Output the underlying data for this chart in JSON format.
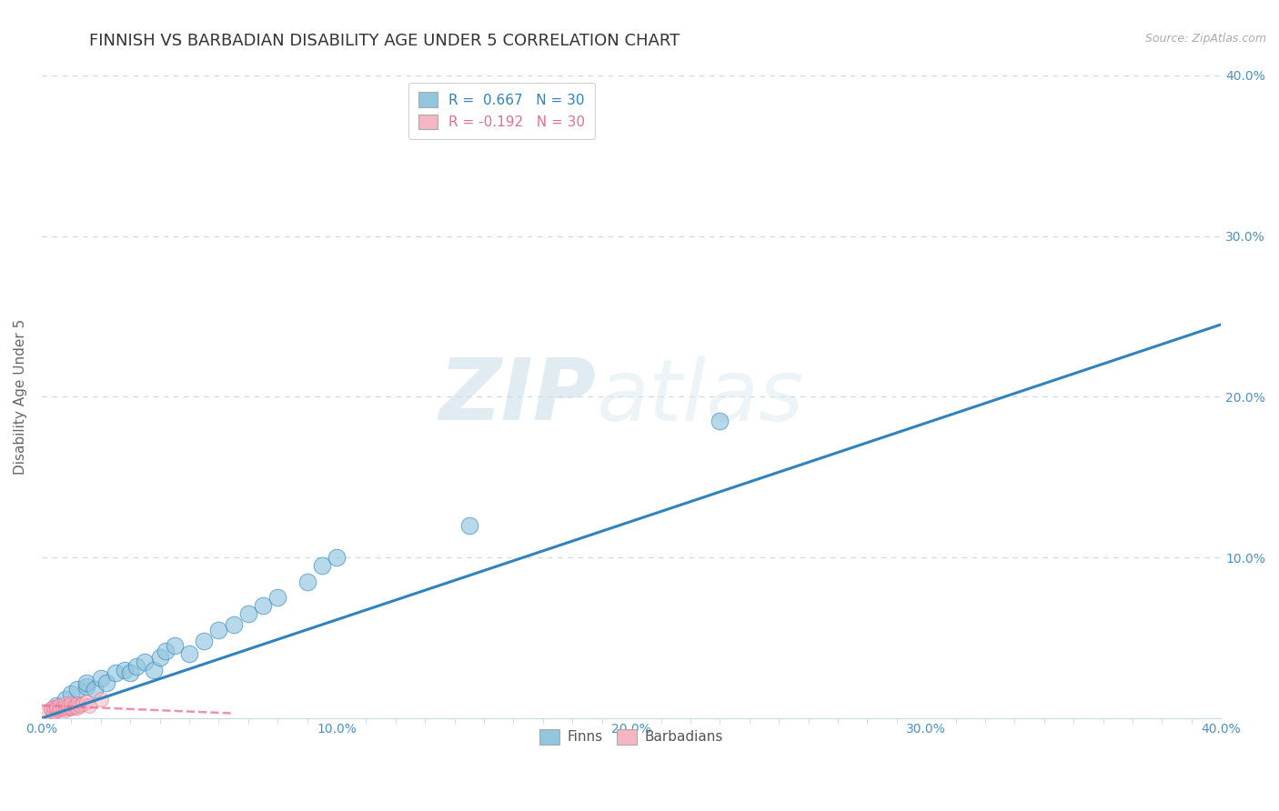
{
  "title": "FINNISH VS BARBADIAN DISABILITY AGE UNDER 5 CORRELATION CHART",
  "source": "Source: ZipAtlas.com",
  "ylabel": "Disability Age Under 5",
  "xlim": [
    0.0,
    0.4
  ],
  "ylim": [
    0.0,
    0.4
  ],
  "xtick_major_positions": [
    0.0,
    0.1,
    0.2,
    0.3,
    0.4
  ],
  "ytick_major_positions": [
    0.1,
    0.2,
    0.3,
    0.4
  ],
  "legend_r_finn": " 0.667",
  "legend_n_finn": "30",
  "legend_r_barb": "-0.192",
  "legend_n_barb": "30",
  "color_finn": "#92c5de",
  "color_barb": "#f4b6c2",
  "color_finn_line": "#3182bd",
  "color_barb_line": "#e07090",
  "watermark_zip": "ZIP",
  "watermark_atlas": "atlas",
  "finns_x": [
    0.005,
    0.008,
    0.01,
    0.012,
    0.015,
    0.015,
    0.018,
    0.02,
    0.022,
    0.025,
    0.028,
    0.03,
    0.032,
    0.035,
    0.038,
    0.04,
    0.042,
    0.045,
    0.05,
    0.055,
    0.06,
    0.065,
    0.07,
    0.075,
    0.08,
    0.09,
    0.095,
    0.1,
    0.145,
    0.23
  ],
  "finns_y": [
    0.008,
    0.012,
    0.015,
    0.018,
    0.02,
    0.022,
    0.018,
    0.025,
    0.022,
    0.028,
    0.03,
    0.028,
    0.032,
    0.035,
    0.03,
    0.038,
    0.042,
    0.045,
    0.04,
    0.048,
    0.055,
    0.058,
    0.065,
    0.07,
    0.075,
    0.085,
    0.095,
    0.1,
    0.12,
    0.185
  ],
  "barbadians_x": [
    0.002,
    0.003,
    0.003,
    0.004,
    0.004,
    0.005,
    0.005,
    0.005,
    0.006,
    0.006,
    0.006,
    0.007,
    0.007,
    0.008,
    0.008,
    0.008,
    0.009,
    0.009,
    0.01,
    0.01,
    0.01,
    0.011,
    0.011,
    0.012,
    0.012,
    0.013,
    0.014,
    0.015,
    0.016,
    0.02
  ],
  "barbadians_y": [
    0.004,
    0.005,
    0.006,
    0.004,
    0.007,
    0.005,
    0.006,
    0.007,
    0.005,
    0.006,
    0.008,
    0.006,
    0.007,
    0.005,
    0.007,
    0.009,
    0.006,
    0.008,
    0.006,
    0.007,
    0.009,
    0.007,
    0.008,
    0.007,
    0.009,
    0.008,
    0.009,
    0.01,
    0.008,
    0.012
  ],
  "finn_line_x0": 0.0,
  "finn_line_y0": 0.0,
  "finn_line_x1": 0.4,
  "finn_line_y1": 0.245,
  "barb_line_x0": 0.0,
  "barb_line_y0": 0.008,
  "barb_line_x1": 0.065,
  "barb_line_y1": 0.003,
  "background_color": "#ffffff",
  "grid_color": "#c8d8e8",
  "tick_color": "#4a90c4",
  "title_fontsize": 13,
  "label_fontsize": 11,
  "tick_fontsize": 10,
  "source_fontsize": 9
}
